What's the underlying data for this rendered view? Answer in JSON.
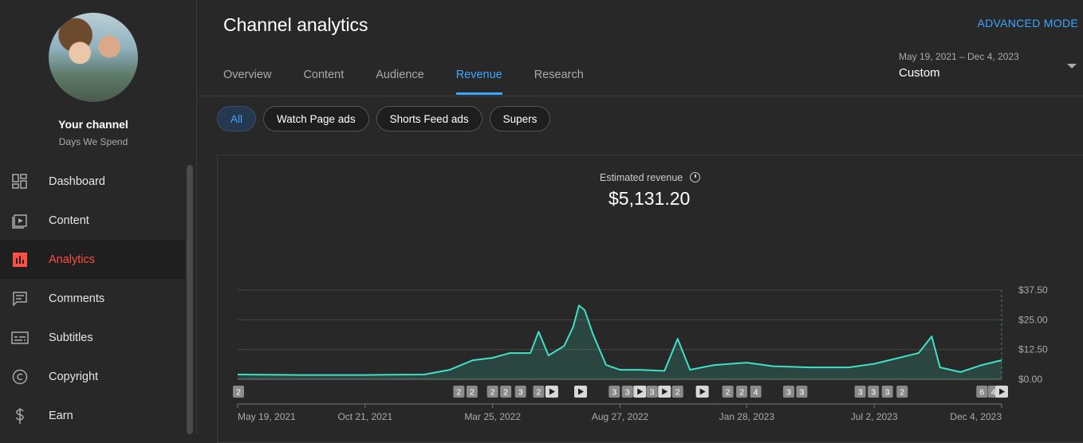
{
  "sidebar": {
    "channel_title": "Your channel",
    "channel_handle": "Days We Spend",
    "items": [
      {
        "label": "Dashboard",
        "icon": "dashboard-icon"
      },
      {
        "label": "Content",
        "icon": "content-icon"
      },
      {
        "label": "Analytics",
        "icon": "analytics-icon",
        "active": true
      },
      {
        "label": "Comments",
        "icon": "comments-icon"
      },
      {
        "label": "Subtitles",
        "icon": "subtitles-icon"
      },
      {
        "label": "Copyright",
        "icon": "copyright-icon"
      },
      {
        "label": "Earn",
        "icon": "dollar-icon"
      }
    ],
    "active_color": "#ff4e45"
  },
  "header": {
    "title": "Channel analytics",
    "advanced_mode": "ADVANCED MODE",
    "tabs": [
      {
        "label": "Overview"
      },
      {
        "label": "Content"
      },
      {
        "label": "Audience"
      },
      {
        "label": "Revenue",
        "active": true
      },
      {
        "label": "Research"
      }
    ],
    "date_range": "May 19, 2021 – Dec 4, 2023",
    "date_preset": "Custom"
  },
  "filters": {
    "chips": [
      {
        "label": "All",
        "active": true
      },
      {
        "label": "Watch Page ads"
      },
      {
        "label": "Shorts Feed ads"
      },
      {
        "label": "Supers"
      }
    ]
  },
  "metric": {
    "label": "Estimated revenue",
    "value": "$5,131.20"
  },
  "markers": [
    {
      "x": "May 20, 2021",
      "label": "2"
    },
    {
      "x": "Feb 12, 2022",
      "label": "2"
    },
    {
      "x": "Feb 28, 2022",
      "label": "2"
    },
    {
      "x": "Mar 25, 2022",
      "label": "2"
    },
    {
      "x": "Apr 10, 2022",
      "label": "2"
    },
    {
      "x": "Apr 28, 2022",
      "label": "3"
    },
    {
      "x": "May 20, 2022",
      "label": "2"
    },
    {
      "x": "Jun 5, 2022",
      "label": "play"
    },
    {
      "x": "Jul 10, 2022",
      "label": "play"
    },
    {
      "x": "Aug 20, 2022",
      "label": "3"
    },
    {
      "x": "Sep 5, 2022",
      "label": "3"
    },
    {
      "x": "Sep 20, 2022",
      "label": "play"
    },
    {
      "x": "Oct 5, 2022",
      "label": "3"
    },
    {
      "x": "Oct 20, 2022",
      "label": "play"
    },
    {
      "x": "Nov 5, 2022",
      "label": "2"
    },
    {
      "x": "Dec 5, 2022",
      "label": "play"
    },
    {
      "x": "Jan 5, 2023",
      "label": "2"
    },
    {
      "x": "Jan 22, 2023",
      "label": "2"
    },
    {
      "x": "Feb 8, 2023",
      "label": "4"
    },
    {
      "x": "Mar 20, 2023",
      "label": "3"
    },
    {
      "x": "Apr 5, 2023",
      "label": "3"
    },
    {
      "x": "Jun 15, 2023",
      "label": "3"
    },
    {
      "x": "Jul 1, 2023",
      "label": "3"
    },
    {
      "x": "Jul 18, 2023",
      "label": "3"
    },
    {
      "x": "Aug 5, 2023",
      "label": "2"
    },
    {
      "x": "Nov 10, 2023",
      "label": "6"
    },
    {
      "x": "Nov 24, 2023",
      "label": "4"
    },
    {
      "x": "Dec 4, 2023",
      "label": "play"
    }
  ],
  "chart_data": {
    "type": "area",
    "line_color": "#40e0c8",
    "x_tick_labels": [
      "May 19, 2021",
      "Oct 21, 2021",
      "Mar 25, 2022",
      "Aug 27, 2022",
      "Jan 28, 2023",
      "Jul 2, 2023",
      "Dec 4, 2023"
    ],
    "y_tick_labels": [
      "$37.50",
      "$25.00",
      "$12.50",
      "$0.00"
    ],
    "ylim": [
      0,
      37.5
    ],
    "xlim": [
      "May 19, 2021",
      "Dec 4, 2023"
    ],
    "grid": true,
    "series": [
      {
        "x": [
          "May 19, 2021",
          "Aug 1, 2021",
          "Oct 21, 2021",
          "Jan 1, 2022",
          "Feb 1, 2022",
          "Mar 1, 2022",
          "Mar 25, 2022",
          "Apr 15, 2022",
          "May 10, 2022",
          "May 20, 2022",
          "Jun 1, 2022",
          "Jun 20, 2022",
          "Jul 1, 2022",
          "Jul 8, 2022",
          "Jul 15, 2022",
          "Jul 25, 2022",
          "Aug 10, 2022",
          "Aug 27, 2022",
          "Sep 20, 2022",
          "Oct 20, 2022",
          "Nov 5, 2022",
          "Nov 20, 2022",
          "Dec 20, 2022",
          "Jan 28, 2023",
          "Mar 1, 2023",
          "Apr 15, 2023",
          "Jun 1, 2023",
          "Jul 2, 2023",
          "Aug 1, 2023",
          "Aug 25, 2023",
          "Sep 10, 2023",
          "Sep 20, 2023",
          "Oct 15, 2023",
          "Nov 10, 2023",
          "Dec 4, 2023"
        ],
        "y": [
          2,
          1.8,
          1.8,
          2,
          4,
          8,
          9,
          11,
          11,
          20,
          10,
          14,
          22,
          31,
          29,
          19,
          6,
          4,
          4,
          3.5,
          17,
          4,
          6,
          7,
          5.5,
          5,
          5,
          6.5,
          9,
          11,
          18,
          5,
          3,
          6,
          8
        ]
      }
    ]
  }
}
